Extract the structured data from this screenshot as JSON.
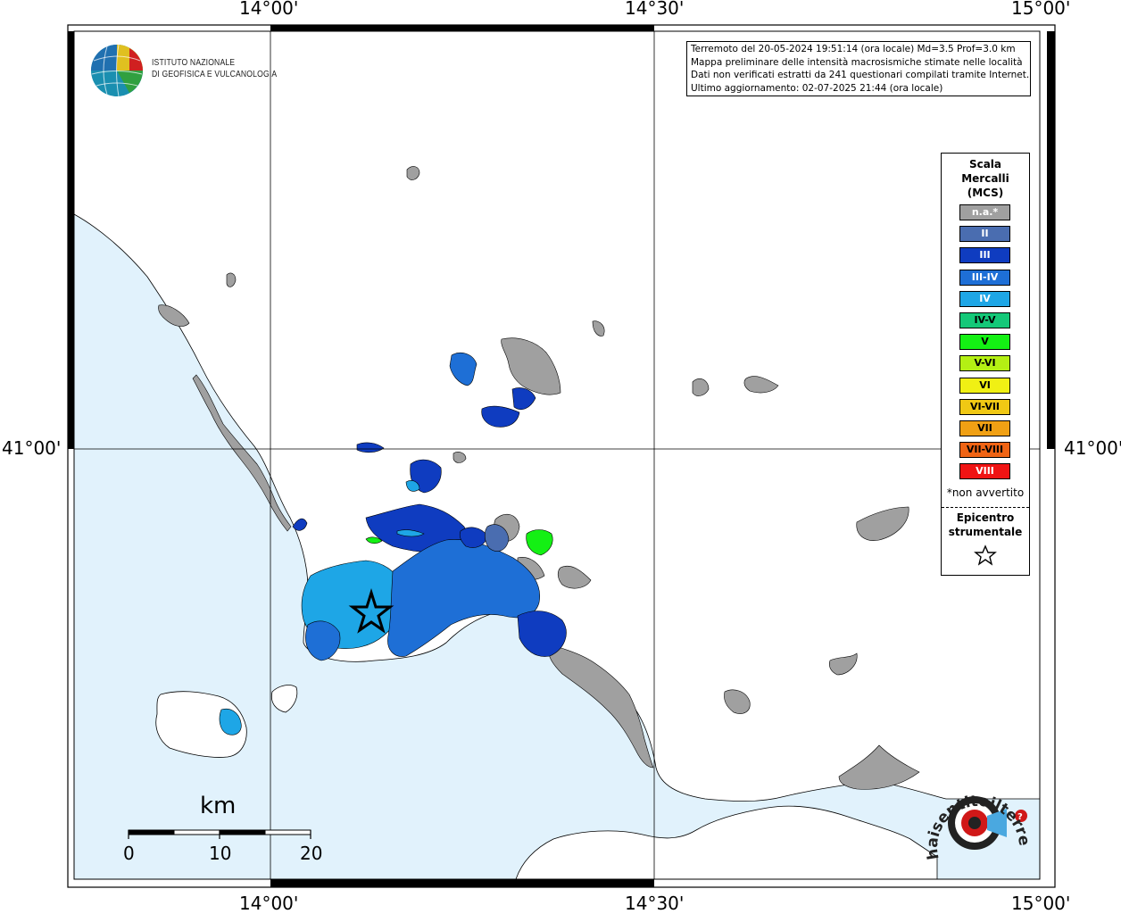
{
  "map": {
    "longitude_labels": [
      "14°00'",
      "14°30'",
      "15°00'"
    ],
    "latitude_labels": [
      "41°00'"
    ],
    "info": {
      "line1": "Terremoto del 20-05-2024 19:51:14 (ora locale) Md=3.5 Prof=3.0 km",
      "line2": "Mappa preliminare delle intensità macrosismiche stimate nelle località",
      "line3": "Dati non verificati estratti da 241 questionari compilati tramite Internet.",
      "line4": "Ultimo aggiornamento: 02-07-2025 21:44 (ora locale)"
    },
    "logo": {
      "line1": "ISTITUTO NAZIONALE",
      "line2": "DI GEOFISICA E VULCANOLOGIA"
    },
    "legend": {
      "title_line1": "Scala",
      "title_line2": "Mercalli",
      "title_line3": "(MCS)",
      "items": [
        {
          "label": "n.a.*",
          "color": "#a0a0a0",
          "text_color": "#ffffff"
        },
        {
          "label": "II",
          "color": "#4a6db0",
          "text_color": "#ffffff"
        },
        {
          "label": "III",
          "color": "#0f3cc0",
          "text_color": "#ffffff"
        },
        {
          "label": "III-IV",
          "color": "#1e6fd6",
          "text_color": "#ffffff"
        },
        {
          "label": "IV",
          "color": "#1ea6e6",
          "text_color": "#ffffff"
        },
        {
          "label": "IV-V",
          "color": "#14c878",
          "text_color": "#000000"
        },
        {
          "label": "V",
          "color": "#14f014",
          "text_color": "#000000"
        },
        {
          "label": "V-VI",
          "color": "#b4f014",
          "text_color": "#000000"
        },
        {
          "label": "VI",
          "color": "#f0f014",
          "text_color": "#000000"
        },
        {
          "label": "VI-VII",
          "color": "#f0c814",
          "text_color": "#000000"
        },
        {
          "label": "VII",
          "color": "#f0a014",
          "text_color": "#000000"
        },
        {
          "label": "VII-VIII",
          "color": "#f06414",
          "text_color": "#000000"
        },
        {
          "label": "VIII",
          "color": "#f01414",
          "text_color": "#ffffff"
        }
      ],
      "note": "*non avvertito",
      "epicentre_line1": "Epicentro",
      "epicentre_line2": "strumentale"
    },
    "scale_bar": {
      "unit": "km",
      "ticks": [
        "0",
        "10",
        "20"
      ]
    },
    "badge": {
      "text": "haisentitoilterremoto.it",
      "www": "www."
    },
    "colors": {
      "sea": "#e1f2fc",
      "land": "#ffffff",
      "na": "#a0a0a0"
    }
  }
}
